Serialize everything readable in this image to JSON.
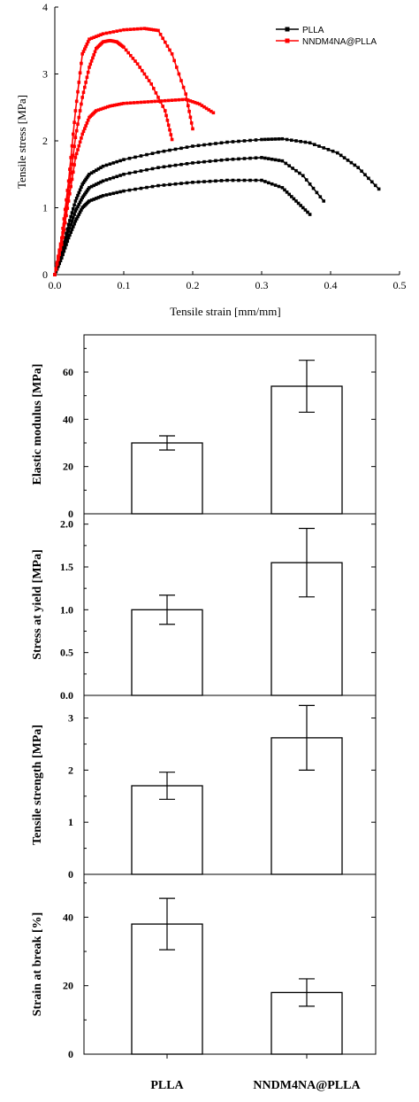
{
  "chart_data": [
    {
      "type": "line",
      "xlabel": "Tensile strain [mm/mm]",
      "ylabel": "Tensile stress [MPa]",
      "xlim": [
        0.0,
        0.5
      ],
      "ylim": [
        0,
        4
      ],
      "xticks": [
        "0.0",
        "0.1",
        "0.2",
        "0.3",
        "0.4",
        "0.5"
      ],
      "yticks": [
        "0",
        "1",
        "2",
        "3",
        "4"
      ],
      "legend_position": "top-right",
      "legend": [
        "PLLA",
        "NNDM4NA@PLLA"
      ],
      "series_colors": [
        "#000000",
        "#ff0000"
      ],
      "series": [
        {
          "name": "PLLA",
          "color": "#000000",
          "points": [
            [
              0,
              0
            ],
            [
              0.01,
              0.25
            ],
            [
              0.02,
              0.55
            ],
            [
              0.03,
              0.8
            ],
            [
              0.04,
              1.0
            ],
            [
              0.05,
              1.1
            ],
            [
              0.07,
              1.18
            ],
            [
              0.1,
              1.25
            ],
            [
              0.15,
              1.33
            ],
            [
              0.2,
              1.38
            ],
            [
              0.25,
              1.41
            ],
            [
              0.3,
              1.41
            ],
            [
              0.33,
              1.3
            ],
            [
              0.35,
              1.1
            ],
            [
              0.37,
              0.9
            ]
          ]
        },
        {
          "name": "PLLA",
          "color": "#000000",
          "points": [
            [
              0,
              0
            ],
            [
              0.01,
              0.3
            ],
            [
              0.02,
              0.65
            ],
            [
              0.03,
              0.95
            ],
            [
              0.04,
              1.15
            ],
            [
              0.05,
              1.3
            ],
            [
              0.07,
              1.4
            ],
            [
              0.1,
              1.5
            ],
            [
              0.15,
              1.6
            ],
            [
              0.2,
              1.67
            ],
            [
              0.25,
              1.72
            ],
            [
              0.3,
              1.75
            ],
            [
              0.33,
              1.7
            ],
            [
              0.36,
              1.48
            ],
            [
              0.39,
              1.1
            ]
          ]
        },
        {
          "name": "PLLA",
          "color": "#000000",
          "points": [
            [
              0,
              0
            ],
            [
              0.01,
              0.35
            ],
            [
              0.02,
              0.75
            ],
            [
              0.03,
              1.1
            ],
            [
              0.04,
              1.35
            ],
            [
              0.05,
              1.5
            ],
            [
              0.07,
              1.62
            ],
            [
              0.1,
              1.72
            ],
            [
              0.15,
              1.83
            ],
            [
              0.2,
              1.92
            ],
            [
              0.25,
              1.98
            ],
            [
              0.3,
              2.02
            ],
            [
              0.33,
              2.03
            ],
            [
              0.37,
              1.97
            ],
            [
              0.41,
              1.82
            ],
            [
              0.44,
              1.6
            ],
            [
              0.47,
              1.28
            ]
          ]
        },
        {
          "name": "NNDM4NA@PLLA",
          "color": "#ff0000",
          "points": [
            [
              0,
              0
            ],
            [
              0.01,
              0.45
            ],
            [
              0.02,
              1.1
            ],
            [
              0.03,
              1.75
            ],
            [
              0.04,
              2.1
            ],
            [
              0.05,
              2.35
            ],
            [
              0.06,
              2.45
            ],
            [
              0.08,
              2.52
            ],
            [
              0.1,
              2.56
            ],
            [
              0.13,
              2.58
            ],
            [
              0.16,
              2.6
            ],
            [
              0.19,
              2.62
            ],
            [
              0.21,
              2.55
            ],
            [
              0.23,
              2.42
            ]
          ]
        },
        {
          "name": "NNDM4NA@PLLA",
          "color": "#ff0000",
          "points": [
            [
              0,
              0
            ],
            [
              0.01,
              0.5
            ],
            [
              0.02,
              1.25
            ],
            [
              0.03,
              2.05
            ],
            [
              0.04,
              2.65
            ],
            [
              0.05,
              3.1
            ],
            [
              0.06,
              3.38
            ],
            [
              0.07,
              3.48
            ],
            [
              0.08,
              3.5
            ],
            [
              0.09,
              3.48
            ],
            [
              0.1,
              3.4
            ],
            [
              0.12,
              3.15
            ],
            [
              0.14,
              2.85
            ],
            [
              0.16,
              2.45
            ],
            [
              0.17,
              2.02
            ]
          ]
        },
        {
          "name": "NNDM4NA@PLLA",
          "color": "#ff0000",
          "points": [
            [
              0,
              0
            ],
            [
              0.01,
              0.55
            ],
            [
              0.02,
              1.4
            ],
            [
              0.03,
              2.45
            ],
            [
              0.04,
              3.3
            ],
            [
              0.05,
              3.52
            ],
            [
              0.07,
              3.6
            ],
            [
              0.1,
              3.66
            ],
            [
              0.13,
              3.68
            ],
            [
              0.15,
              3.65
            ],
            [
              0.17,
              3.3
            ],
            [
              0.19,
              2.7
            ],
            [
              0.2,
              2.18
            ]
          ]
        }
      ]
    },
    {
      "type": "bar",
      "ylabel": "Elastic modulus [MPa]",
      "categories": [
        "PLLA",
        "NNDM4NA@PLLA"
      ],
      "values": [
        30,
        54
      ],
      "errors": [
        3,
        11
      ],
      "ylim": [
        0,
        75
      ],
      "yticks": [
        "0",
        "20",
        "40",
        "60"
      ]
    },
    {
      "type": "bar",
      "ylabel": "Stress at yield [MPa]",
      "categories": [
        "PLLA",
        "NNDM4NA@PLLA"
      ],
      "values": [
        1.0,
        1.55
      ],
      "errors": [
        0.17,
        0.4
      ],
      "ylim": [
        0,
        2.1
      ],
      "yticks": [
        "0.0",
        "0.5",
        "1.0",
        "1.5",
        "2.0"
      ]
    },
    {
      "type": "bar",
      "ylabel": "Tensile strength [MPa]",
      "categories": [
        "PLLA",
        "NNDM4NA@PLLA"
      ],
      "values": [
        1.7,
        2.62
      ],
      "errors": [
        0.26,
        0.62
      ],
      "ylim": [
        0,
        3.4
      ],
      "yticks": [
        "0",
        "1",
        "2",
        "3"
      ]
    },
    {
      "type": "bar",
      "ylabel": "Strain at break [%]",
      "categories": [
        "PLLA",
        "NNDM4NA@PLLA"
      ],
      "values": [
        38,
        18
      ],
      "errors": [
        7.5,
        4
      ],
      "ylim": [
        0,
        52
      ],
      "yticks": [
        "0",
        "20",
        "40"
      ],
      "xticklabels": [
        "PLLA",
        "NNDM4NA@PLLA"
      ]
    }
  ]
}
